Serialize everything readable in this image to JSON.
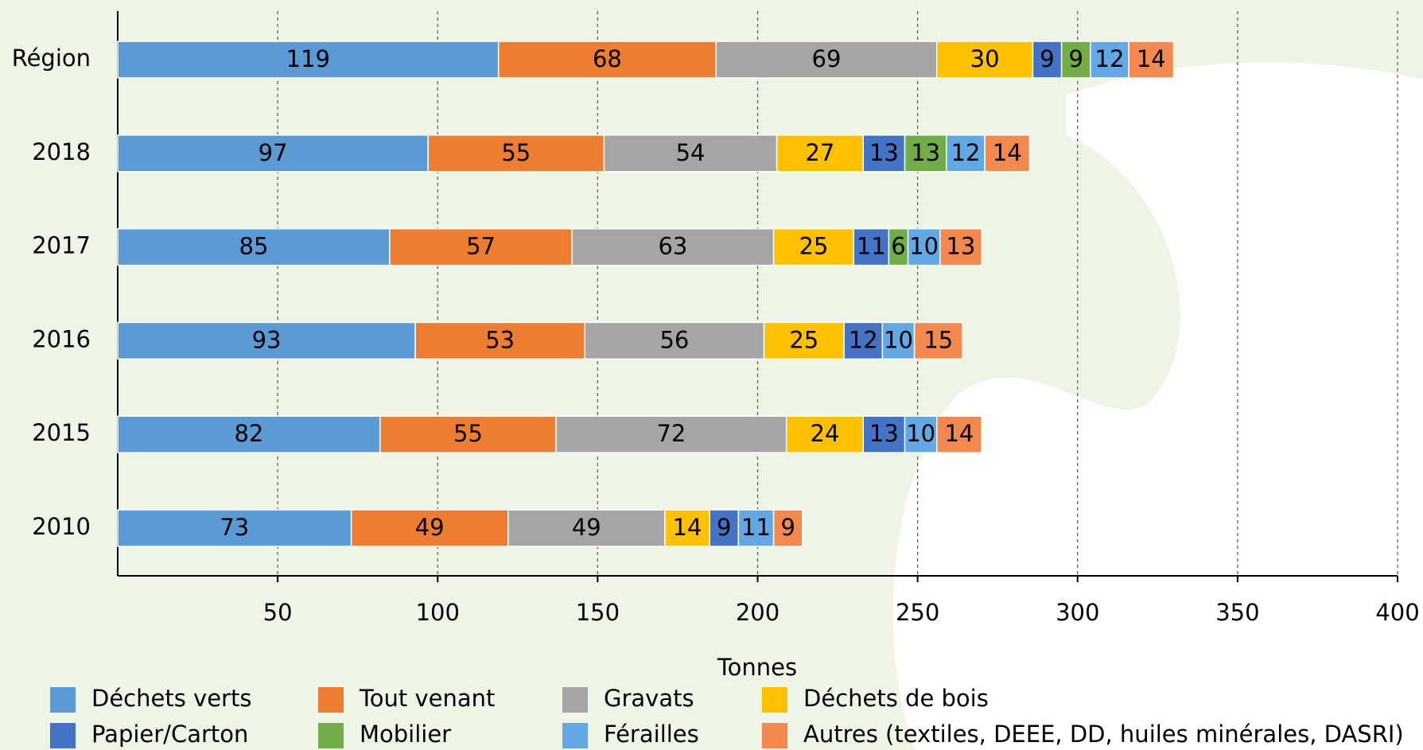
{
  "chart_data": {
    "type": "stacked-bar-horizontal",
    "categories": [
      "Région",
      "2018",
      "2017",
      "2016",
      "2015",
      "2010"
    ],
    "series": [
      {
        "name": "Déchets verts",
        "color": "#5b9bd5",
        "values": [
          119,
          97,
          85,
          93,
          82,
          73
        ]
      },
      {
        "name": "Tout venant",
        "color": "#ed7d31",
        "values": [
          68,
          55,
          57,
          53,
          55,
          49
        ]
      },
      {
        "name": "Gravats",
        "color": "#a5a5a5",
        "values": [
          69,
          54,
          63,
          56,
          72,
          49
        ]
      },
      {
        "name": "Déchets de bois",
        "color": "#ffc000",
        "values": [
          30,
          27,
          25,
          25,
          24,
          14
        ]
      },
      {
        "name": "Papier/Carton",
        "color": "#4472c4",
        "values": [
          9,
          13,
          11,
          12,
          13,
          9
        ]
      },
      {
        "name": "Mobilier",
        "color": "#70ad47",
        "values": [
          9,
          13,
          6,
          null,
          null,
          null
        ]
      },
      {
        "name": "Férailles",
        "color": "#62a8e5",
        "values": [
          12,
          12,
          10,
          10,
          10,
          11
        ]
      },
      {
        "name": "Autres (textiles, DEEE, DD, huiles minérales, DASRI)",
        "color": "#f4894f",
        "values": [
          14,
          14,
          13,
          15,
          14,
          9
        ]
      }
    ],
    "xlabel": "Tonnes",
    "xlim": [
      0,
      400
    ],
    "xticks": [
      50,
      100,
      150,
      200,
      250,
      300,
      350,
      400
    ],
    "grid": true,
    "legend": "bottom"
  }
}
